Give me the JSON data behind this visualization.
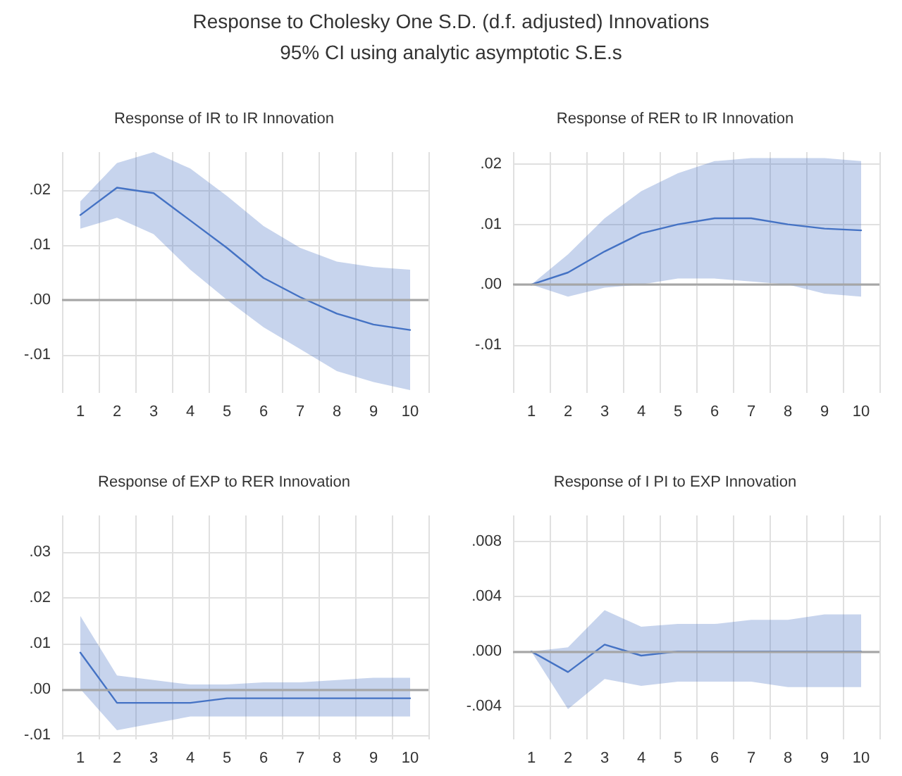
{
  "chart_data": [
    {
      "type": "line",
      "title": "Response of IR to IR Innovation",
      "annotations": [
        "Response to Cholesky One S.D. (d.f. adjusted) Innovations",
        "95% CI using analytic asymptotic S.E.s"
      ],
      "categories": [
        "1",
        "2",
        "3",
        "4",
        "5",
        "6",
        "7",
        "8",
        "9",
        "10"
      ],
      "series": [
        {
          "color": "#4472c4",
          "values": [
            0.0155,
            0.0205,
            0.0195,
            0.0145,
            0.0095,
            0.004,
            0.0005,
            -0.0025,
            -0.0045,
            -0.0055
          ],
          "lower": [
            0.013,
            0.015,
            0.012,
            0.0055,
            0.0,
            -0.005,
            -0.009,
            -0.013,
            -0.015,
            -0.0165
          ],
          "upper": [
            0.018,
            0.025,
            0.027,
            0.024,
            0.019,
            0.0135,
            0.0095,
            0.007,
            0.006,
            0.0055
          ]
        }
      ],
      "ylim": [
        -0.017,
        0.027
      ],
      "yticks": [
        {
          "value": -0.01,
          "label": "-.01"
        },
        {
          "value": 0,
          "label": ".00"
        },
        {
          "value": 0.01,
          "label": ".01"
        },
        {
          "value": 0.02,
          "label": ".02"
        }
      ],
      "ref_lines": [
        {
          "axis": "y",
          "value": 0,
          "label": null,
          "color": "#a6a6a6"
        }
      ],
      "grid": true,
      "marker": "none",
      "line_style": "solid"
    },
    {
      "type": "line",
      "title": "Response of RER to IR Innovation",
      "categories": [
        "1",
        "2",
        "3",
        "4",
        "5",
        "6",
        "7",
        "8",
        "9",
        "10"
      ],
      "series": [
        {
          "color": "#4472c4",
          "values": [
            0.0,
            0.002,
            0.0055,
            0.0085,
            0.01,
            0.011,
            0.011,
            0.01,
            0.0093,
            0.009
          ],
          "lower": [
            0.0,
            -0.002,
            -0.0005,
            0.0,
            0.001,
            0.001,
            0.0005,
            0.0,
            -0.0015,
            -0.002
          ],
          "upper": [
            0.0,
            0.005,
            0.011,
            0.0155,
            0.0185,
            0.0205,
            0.021,
            0.021,
            0.021,
            0.0205
          ]
        }
      ],
      "ylim": [
        -0.018,
        0.022
      ],
      "yticks": [
        {
          "value": -0.01,
          "label": "-.01"
        },
        {
          "value": 0,
          "label": ".00"
        },
        {
          "value": 0.01,
          "label": ".01"
        },
        {
          "value": 0.02,
          "label": ".02"
        }
      ],
      "ref_lines": [
        {
          "axis": "y",
          "value": 0,
          "label": null,
          "color": "#a6a6a6"
        }
      ],
      "grid": true,
      "marker": "none",
      "line_style": "solid"
    },
    {
      "type": "line",
      "title": "Response of EXP to RER Innovation",
      "categories": [
        "1",
        "2",
        "3",
        "4",
        "5",
        "6",
        "7",
        "8",
        "9",
        "10"
      ],
      "series": [
        {
          "color": "#4472c4",
          "values": [
            0.008,
            -0.003,
            -0.003,
            -0.003,
            -0.002,
            -0.002,
            -0.002,
            -0.002,
            -0.002,
            -0.002
          ],
          "lower": [
            0.0,
            -0.009,
            -0.0075,
            -0.006,
            -0.006,
            -0.006,
            -0.006,
            -0.006,
            -0.006,
            -0.006
          ],
          "upper": [
            0.016,
            0.003,
            0.002,
            0.001,
            0.001,
            0.0015,
            0.0015,
            0.002,
            0.0025,
            0.0025
          ]
        }
      ],
      "ylim": [
        -0.011,
        0.038
      ],
      "yticks": [
        {
          "value": -0.01,
          "label": "-.01"
        },
        {
          "value": 0,
          "label": ".00"
        },
        {
          "value": 0.01,
          "label": ".01"
        },
        {
          "value": 0.02,
          "label": ".02"
        },
        {
          "value": 0.03,
          "label": ".03"
        }
      ],
      "ref_lines": [
        {
          "axis": "y",
          "value": 0,
          "label": null,
          "color": "#a6a6a6"
        }
      ],
      "grid": true,
      "marker": "none",
      "line_style": "solid"
    },
    {
      "type": "line",
      "title": "Response of I PI to EXP Innovation",
      "categories": [
        "1",
        "2",
        "3",
        "4",
        "5",
        "6",
        "7",
        "8",
        "9",
        "10"
      ],
      "series": [
        {
          "color": "#4472c4",
          "values": [
            0.0,
            -0.0015,
            0.0005,
            -0.0003,
            0.0,
            0.0,
            0.0,
            0.0,
            0.0,
            0.0
          ],
          "lower": [
            0.0,
            -0.0042,
            -0.002,
            -0.0025,
            -0.0022,
            -0.0022,
            -0.0022,
            -0.0026,
            -0.0026,
            -0.0026
          ],
          "upper": [
            0.0,
            0.0003,
            0.003,
            0.0018,
            0.002,
            0.002,
            0.0023,
            0.0023,
            0.0027,
            0.0027
          ]
        }
      ],
      "ylim": [
        -0.0064,
        0.0099
      ],
      "yticks": [
        {
          "value": -0.004,
          "label": "-.004"
        },
        {
          "value": 0,
          "label": ".000"
        },
        {
          "value": 0.004,
          "label": ".004"
        },
        {
          "value": 0.008,
          "label": ".008"
        }
      ],
      "ref_lines": [
        {
          "axis": "y",
          "value": 0,
          "label": null,
          "color": "#a6a6a6"
        }
      ],
      "grid": true,
      "marker": "none",
      "line_style": "solid"
    }
  ]
}
